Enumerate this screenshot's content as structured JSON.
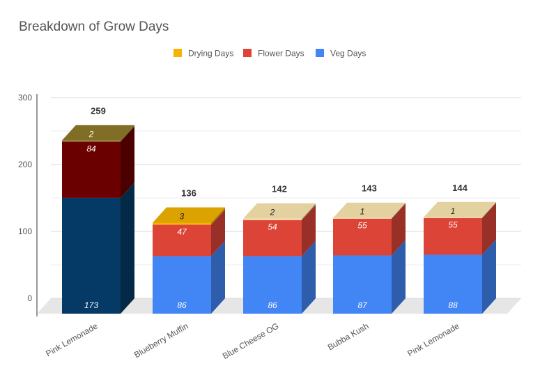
{
  "chart_data": {
    "type": "bar",
    "stacked": true,
    "style": "3d",
    "title": "Breakdown of Grow Days",
    "categories": [
      "Pink Lemonade",
      "Blueberry Muffin",
      "Blue Cheese OG",
      "Bubba Kush",
      "Pink Lemonade"
    ],
    "series": [
      {
        "name": "Veg Days",
        "values": [
          173,
          86,
          86,
          87,
          88
        ],
        "color": "#4285f4"
      },
      {
        "name": "Flower Days",
        "values": [
          84,
          47,
          54,
          55,
          55
        ],
        "color": "#db4437"
      },
      {
        "name": "Drying Days",
        "values": [
          2,
          3,
          2,
          1,
          1
        ],
        "color": "#f4b400"
      }
    ],
    "legend_order": [
      "Drying Days",
      "Flower Days",
      "Veg Days"
    ],
    "totals": [
      259,
      136,
      142,
      143,
      144
    ],
    "highlighted_first_bar_colors": {
      "Veg Days": "#063a66",
      "Flower Days": "#6b0000",
      "Drying Days": "#8f7a2a"
    },
    "pale_drying_color": "#fce8b2",
    "ylim": [
      0,
      300
    ],
    "yticks": [
      0,
      100,
      200,
      300
    ],
    "grid": true,
    "legend_position": "top"
  }
}
